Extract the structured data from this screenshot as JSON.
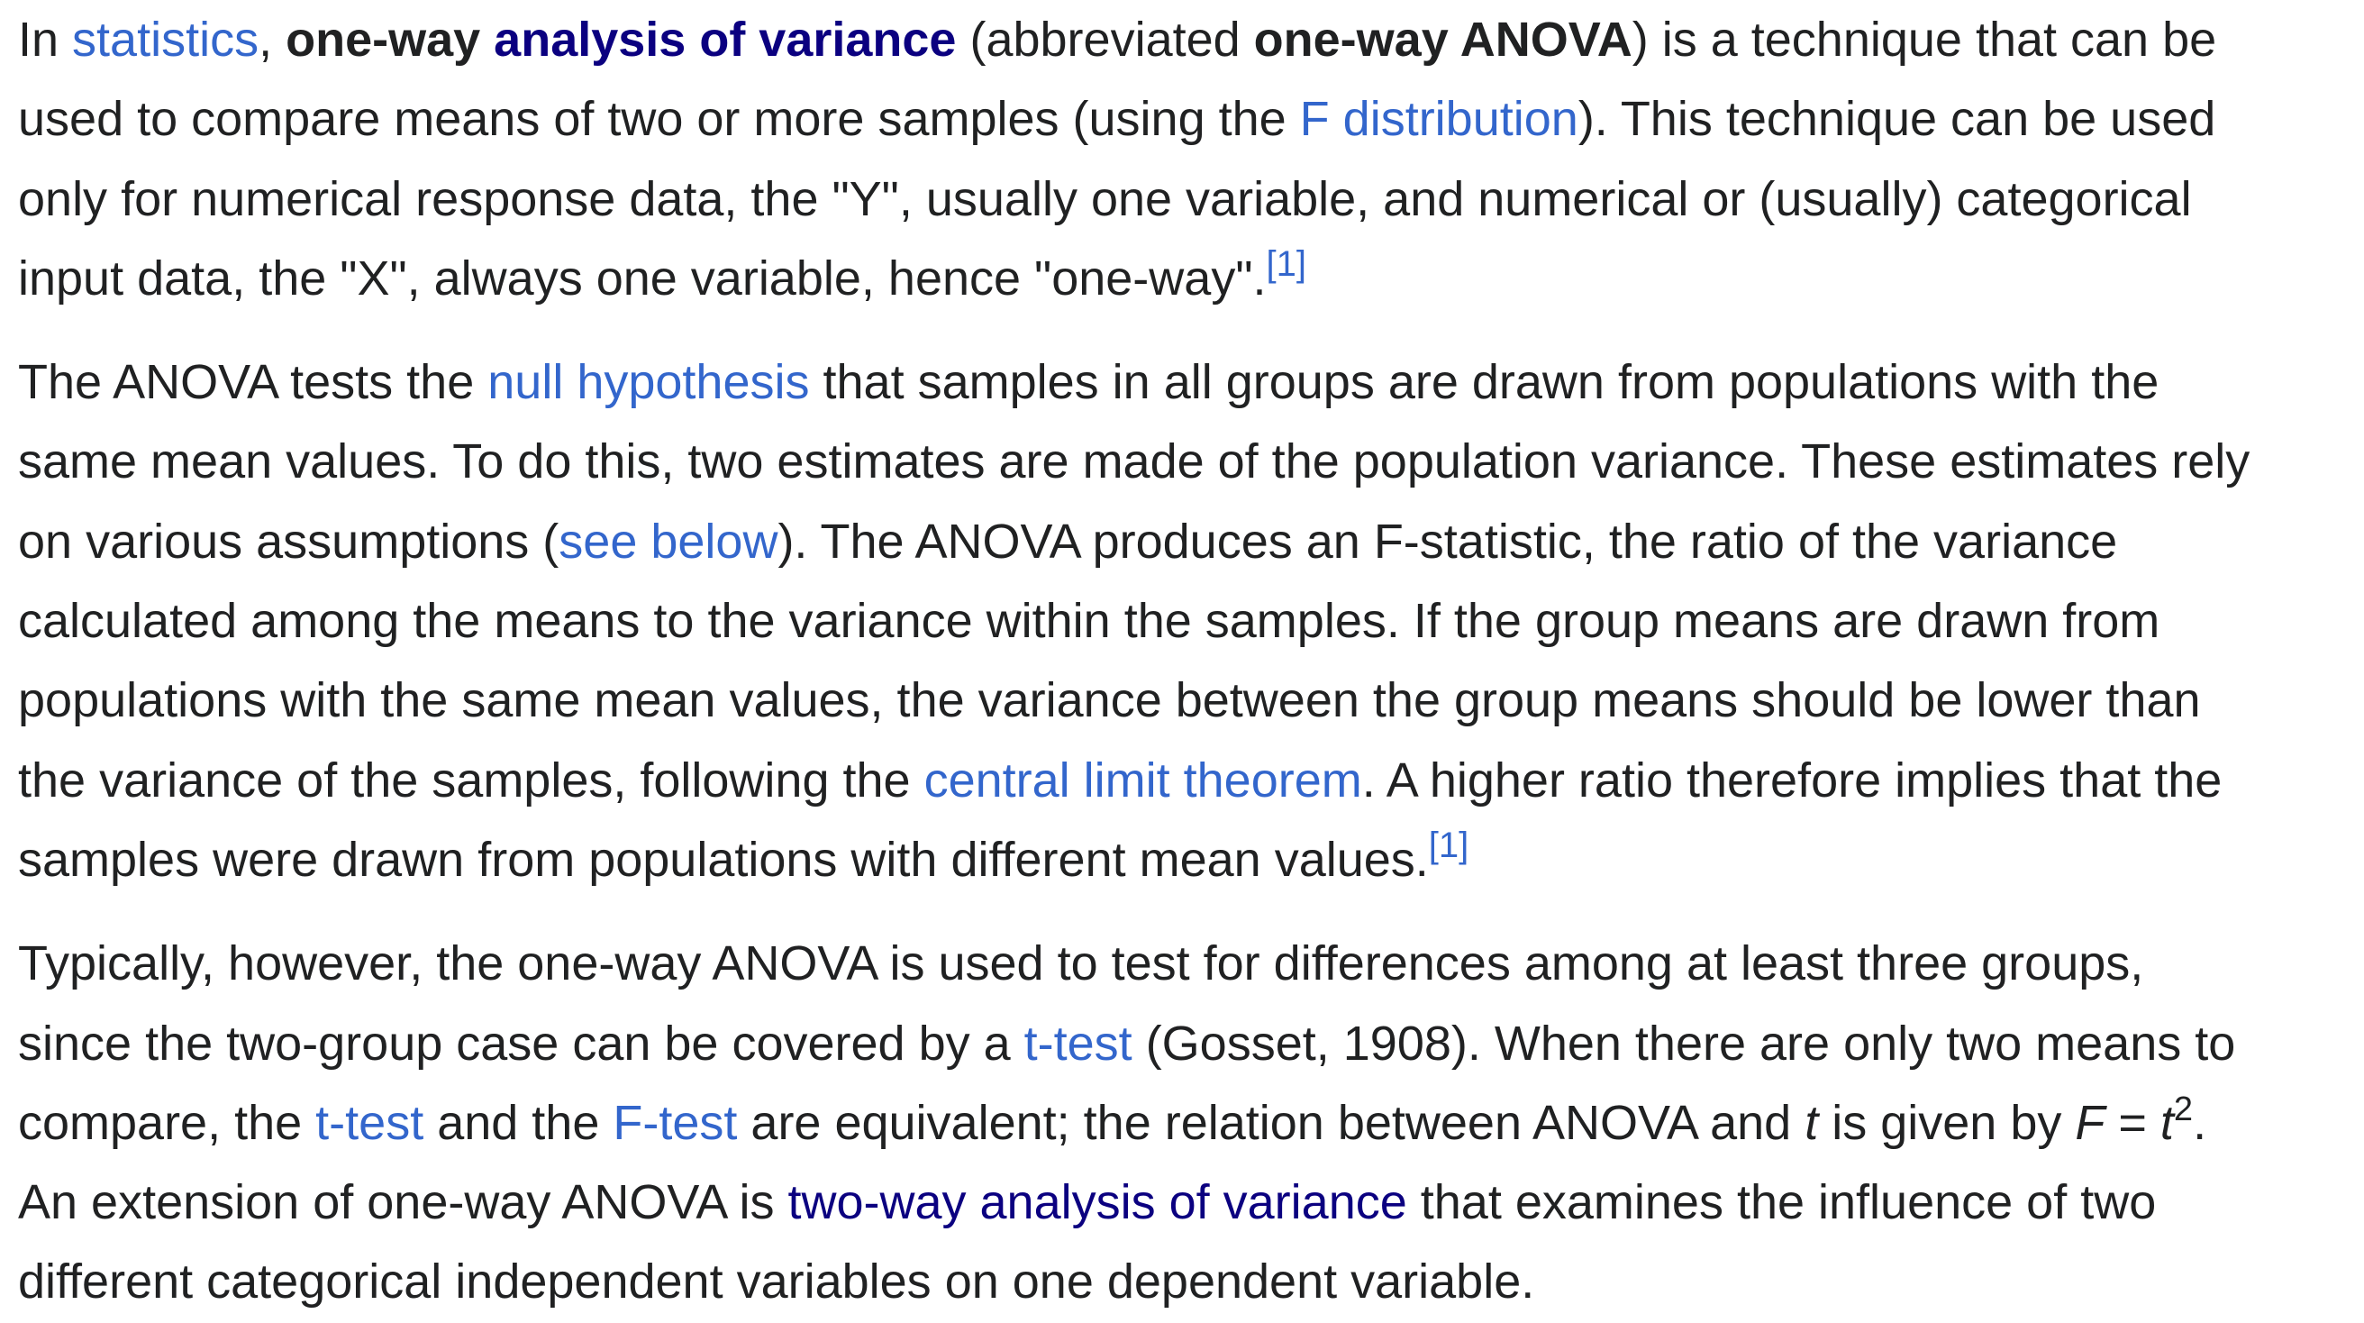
{
  "colors": {
    "text": "#202122",
    "link": "#3366cc",
    "link_visited": "#0b0080",
    "background": "#ffffff"
  },
  "p1": {
    "l1": {
      "t1": "In ",
      "link_statistics": "statistics",
      "t2": ", ",
      "bold1": "one-way ",
      "bold_link": "analysis of variance",
      "t3": " (abbreviated ",
      "bold2": "one-way ANOVA",
      "t4": ") is a technique that can be"
    },
    "l2": {
      "t1": "used to compare means of two or more samples (using the ",
      "link_f_distribution": "F distribution",
      "t2": "). This technique can be used"
    },
    "l3": "only for numerical response data, the \"Y\", usually one variable, and numerical or (usually) categorical",
    "l4": {
      "t1": "input data, the \"X\", always one variable, hence \"one-way\".",
      "ref": "[1]"
    }
  },
  "p2": {
    "l1": {
      "t1": "The ANOVA tests the ",
      "link_null_hypothesis": "null hypothesis",
      "t2": " that samples in all groups are drawn from populations with the"
    },
    "l2": "same mean values. To do this, two estimates are made of the population variance. These estimates rely",
    "l3": {
      "t1": "on various assumptions (",
      "link_see_below": "see below",
      "t2": "). The ANOVA produces an F-statistic, the ratio of the variance"
    },
    "l4": "calculated among the means to the variance within the samples. If the group means are drawn from",
    "l5": "populations with the same mean values, the variance between the group means should be lower than",
    "l6": {
      "t1": "the variance of the samples, following the ",
      "link_clt": "central limit theorem",
      "t2": ". A higher ratio therefore implies that the"
    },
    "l7": {
      "t1": "samples were drawn from populations with different mean values.",
      "ref": "[1]"
    }
  },
  "p3": {
    "l1": "Typically, however, the one-way ANOVA is used to test for differences among at least three groups,",
    "l2": {
      "t1": "since the two-group case can be covered by a ",
      "link_ttest": "t-test",
      "t2": " (Gosset, 1908). When there are only two means to"
    },
    "l3": {
      "t1": "compare, the ",
      "link_ttest": "t-test",
      "t2": " and the ",
      "link_ftest": "F-test",
      "t3": " are equivalent; the relation between ANOVA and ",
      "var_t": "t",
      "t4": " is given by ",
      "var_F": "F",
      "eq": " = ",
      "var_t2": "t",
      "exp": "2",
      "t5": "."
    },
    "l4": {
      "t1": "An extension of one-way ANOVA is ",
      "link_two_way": "two-way analysis of variance",
      "t2": " that examines the influence of two"
    },
    "l5": "different categorical independent variables on one dependent variable."
  }
}
